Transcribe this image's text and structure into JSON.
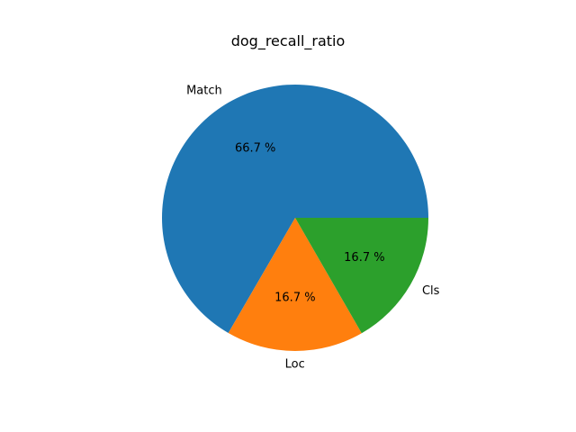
{
  "chart_data": {
    "type": "pie",
    "title": "dog_recall_ratio",
    "labels": [
      "Match",
      "Loc",
      "Cls"
    ],
    "values": [
      66.7,
      16.7,
      16.7
    ],
    "percent_labels": [
      "66.7 %",
      "16.7 %",
      "16.7 %"
    ],
    "colors": [
      "#1f77b4",
      "#ff7f0e",
      "#2ca02c"
    ],
    "start_angle_deg": 0,
    "direction": "counterclockwise"
  }
}
